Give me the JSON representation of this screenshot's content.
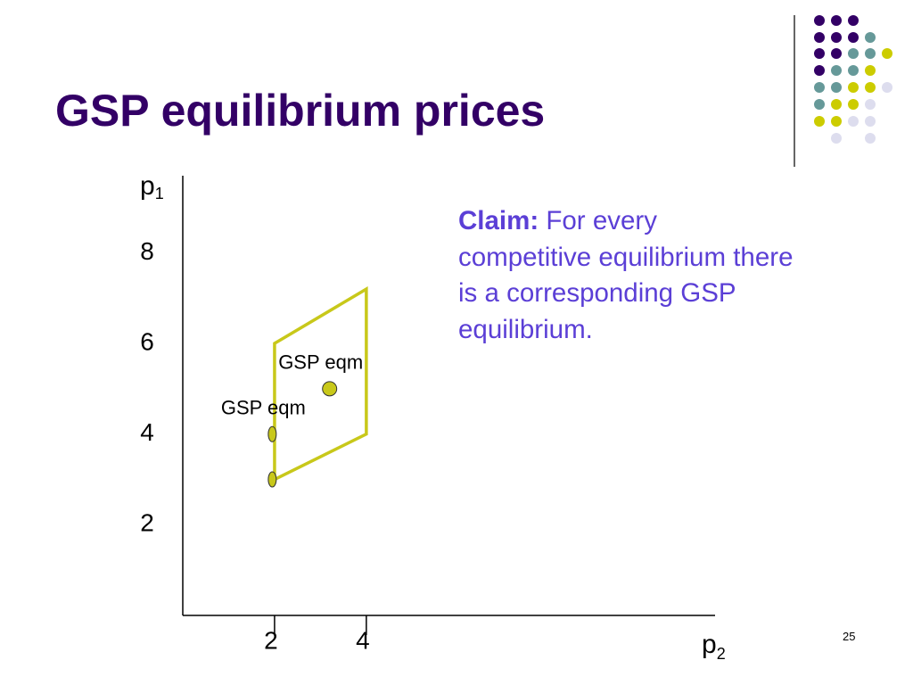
{
  "title": "GSP equilibrium prices",
  "page_number": "25",
  "claim": {
    "label": "Claim:",
    "text": "For every competitive equilibrium there is a corresponding GSP equilibrium."
  },
  "chart_data": {
    "type": "scatter",
    "x_label": {
      "text": "p",
      "subscript": "2"
    },
    "y_label": {
      "text": "p",
      "subscript": "1"
    },
    "xlim": [
      0,
      11.6
    ],
    "ylim": [
      0,
      9.7
    ],
    "xticks": [
      2,
      4
    ],
    "yticks": [
      2,
      4,
      6,
      8
    ],
    "region": {
      "x": [
        2,
        2,
        4,
        4
      ],
      "y": [
        3,
        6,
        7.2,
        4
      ],
      "color": "#c8c81a"
    },
    "series": [
      {
        "x": [
          1.95,
          1.95,
          3.2
        ],
        "values": [
          4,
          3,
          5
        ],
        "color": "#c8c81a",
        "markers": [
          "ellipse",
          "ellipse",
          "circle"
        ],
        "point_labels": [
          "GSP eqm",
          null,
          "GSP eqm"
        ]
      }
    ]
  }
}
